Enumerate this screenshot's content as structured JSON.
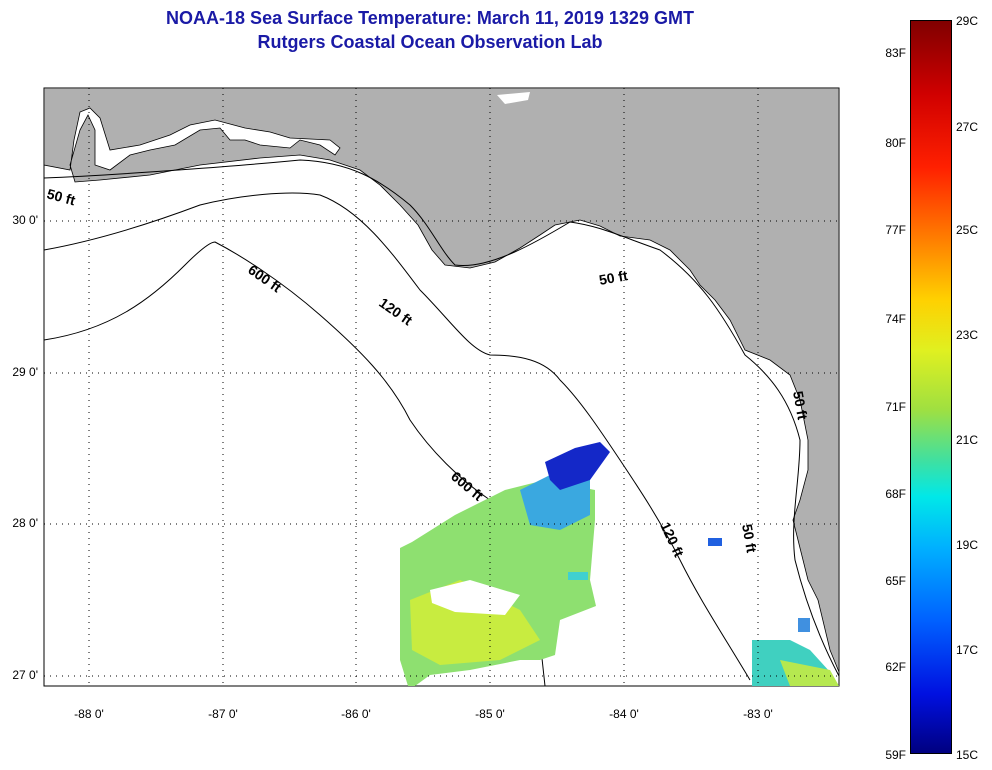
{
  "title": {
    "line1": "NOAA-18 Sea Surface Temperature:  March 11, 2019 1329 GMT",
    "line2": "Rutgers Coastal Ocean Observation Lab"
  },
  "axes": {
    "x_ticks": [
      "-88 0'",
      "-87 0'",
      "-86 0'",
      "-85 0'",
      "-84 0'",
      "-83 0'"
    ],
    "y_ticks": [
      "30 0'",
      "29 0'",
      "28 0'",
      "27 0'"
    ]
  },
  "contour_labels": [
    "50 ft",
    "600 ft",
    "120 ft",
    "50 ft",
    "600 ft",
    "120 ft",
    "50 ft",
    "50 ft"
  ],
  "colorbar": {
    "fahrenheit": [
      "83F",
      "80F",
      "77F",
      "74F",
      "71F",
      "68F",
      "65F",
      "62F",
      "59F"
    ],
    "celsius": [
      "29C",
      "27C",
      "25C",
      "23C",
      "21C",
      "19C",
      "17C",
      "15C"
    ]
  },
  "colors": {
    "title": "#1a1aa6",
    "land": "#b0b0b0",
    "ocean": "#ffffff"
  }
}
